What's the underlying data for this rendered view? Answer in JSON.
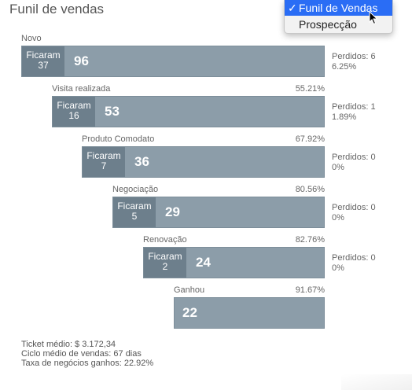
{
  "header": {
    "title": "Funil de vendas"
  },
  "dropdown": {
    "options": [
      {
        "label": "Funil de Vendas",
        "selected": true,
        "check": "✓"
      },
      {
        "label": "Prospecção",
        "selected": false
      }
    ]
  },
  "stages": [
    {
      "name": "Novo",
      "pct": "",
      "stay_label": "Ficaram",
      "stay": "37",
      "count": "96",
      "lost_label": "Perdidos: 6",
      "lost_pct": "6.25%"
    },
    {
      "name": "Visita realizada",
      "pct": "55.21%",
      "stay_label": "Ficaram",
      "stay": "16",
      "count": "53",
      "lost_label": "Perdidos: 1",
      "lost_pct": "1.89%"
    },
    {
      "name": "Produto Comodato",
      "pct": "67.92%",
      "stay_label": "Ficaram",
      "stay": "7",
      "count": "36",
      "lost_label": "Perdidos: 0",
      "lost_pct": "0%"
    },
    {
      "name": "Negociação",
      "pct": "80.56%",
      "stay_label": "Ficaram",
      "stay": "5",
      "count": "29",
      "lost_label": "Perdidos: 0",
      "lost_pct": "0%"
    },
    {
      "name": "Renovação",
      "pct": "82.76%",
      "stay_label": "Ficaram",
      "stay": "2",
      "count": "24",
      "lost_label": "Perdidos: 0",
      "lost_pct": "0%"
    },
    {
      "name": "Ganhou",
      "pct": "91.67%",
      "count": "22"
    }
  ],
  "footer": {
    "ticket": "Ticket médio: $ 3.172,34",
    "cycle": "Ciclo médio de vendas: 67 dias",
    "win_rate": "Taxa de negócios ganhos: 22.92%"
  },
  "colors": {
    "bar": "#8c9da9",
    "stay": "#6d7f8c",
    "accent": "#2a6df5"
  }
}
